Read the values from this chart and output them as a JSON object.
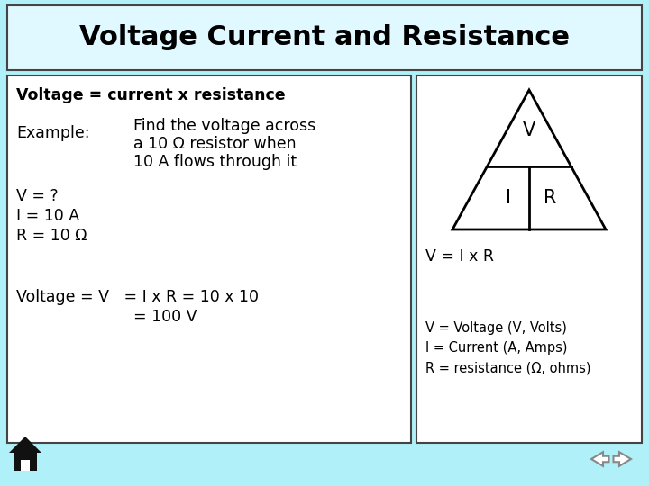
{
  "title": "Voltage Current and Resistance",
  "bg_color": "#b0f0f8",
  "title_bg": "#e0f8ff",
  "box_bg": "#ffffff",
  "title_fontsize": 22,
  "text_color": "#000000",
  "font_family": "Comic Sans MS",
  "left_box": {
    "formula": "Voltage = current x resistance",
    "example_label": "Example:",
    "example_text1": "Find the voltage across",
    "example_text2": "a 10 Ω resistor when",
    "example_text3": "10 A flows through it",
    "v_eq": "V = ?",
    "i_eq": "I = 10 A",
    "r_eq": "R = 10 Ω",
    "voltage_eq1": "Voltage = V   = I x R = 10 x 10",
    "voltage_eq2": "= 100 V"
  },
  "right_box": {
    "triangle_label_v": "V",
    "triangle_label_i": "I",
    "triangle_label_r": "R",
    "formula": "V = I x R",
    "legend1": "V = Voltage (V, Volts)",
    "legend2": "I = Current (A, Amps)",
    "legend3": "R = resistance (Ω, ohms)"
  }
}
